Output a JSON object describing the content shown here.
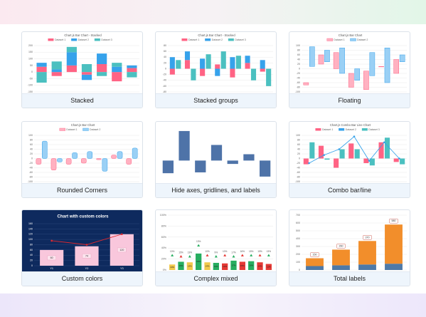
{
  "cards": [
    {
      "label": "Stacked",
      "chart": {
        "type": "bar",
        "title": "Chart.js Bar Chart - Stacked",
        "stacked": true,
        "ylim": [
          -150,
          200
        ],
        "yticks": [
          200,
          150,
          100,
          50,
          0,
          -50,
          -100,
          -150
        ],
        "series": [
          {
            "name": "Dataset 1",
            "color": "#ff6384",
            "values": [
              40,
              -30,
              50,
              -20,
              60,
              -70,
              30
            ]
          },
          {
            "name": "Dataset 2",
            "color": "#36a2eb",
            "values": [
              30,
              20,
              100,
              -40,
              80,
              40,
              20
            ]
          },
          {
            "name": "Dataset 3",
            "color": "#4bc0c0",
            "values": [
              -80,
              60,
              40,
              60,
              -30,
              30,
              -40
            ]
          }
        ]
      }
    },
    {
      "label": "Stacked groups",
      "chart": {
        "type": "bar",
        "title": "Chart.js Bar Chart - Stacked",
        "stacked": true,
        "ylim": [
          -80,
          80
        ],
        "yticks": [
          80,
          60,
          40,
          20,
          0,
          -20,
          -40,
          -60,
          -80
        ],
        "series": [
          {
            "name": "Dataset 1",
            "color": "#ff6384",
            "stack": "Stack 0",
            "values": [
              -20,
              30,
              -25,
              15,
              -30,
              20,
              -10
            ]
          },
          {
            "name": "Dataset 2",
            "color": "#36a2eb",
            "stack": "Stack 0",
            "values": [
              40,
              30,
              35,
              -25,
              40,
              25,
              30
            ]
          },
          {
            "name": "Dataset 3",
            "color": "#4bc0c0",
            "stack": "Stack 1",
            "values": [
              30,
              -40,
              50,
              60,
              45,
              -40,
              -60
            ]
          }
        ]
      }
    },
    {
      "label": "Floating",
      "chart": {
        "type": "bar",
        "title": "Chart.js Bar Chart",
        "floating": true,
        "ylim": [
          -100,
          100
        ],
        "yticks": [
          100,
          80,
          60,
          40,
          20,
          0,
          -20,
          -40,
          -60,
          -80,
          -100
        ],
        "series": [
          {
            "name": "Dataset 1",
            "color": "#ffb1c1",
            "border": "#ff6384",
            "values": [
              [
                -60,
                -70
              ],
              [
                20,
                60
              ],
              [
                0,
                70
              ],
              [
                -20,
                -80
              ],
              [
                -10,
                -90
              ],
              [
                10,
                8
              ],
              [
                40,
                -20
              ]
            ]
          },
          {
            "name": "Dataset 2",
            "color": "#9ad0f5",
            "border": "#36a2eb",
            "values": [
              [
                95,
                10
              ],
              [
                80,
                30
              ],
              [
                90,
                -20
              ],
              [
                0,
                -50
              ],
              [
                70,
                -30
              ],
              [
                90,
                -60
              ],
              [
                30,
                60
              ]
            ]
          }
        ]
      }
    },
    {
      "label": "Rounded Corners",
      "chart": {
        "type": "bar",
        "title": "Chart.js Bar Chart",
        "rounded": true,
        "ylim": [
          -100,
          100
        ],
        "yticks": [
          100,
          80,
          60,
          40,
          20,
          0,
          -20,
          -40,
          -60,
          -80,
          -100
        ],
        "series": [
          {
            "name": "Dataset 1",
            "color": "#ffb1c1",
            "border": "#ff6384",
            "values": [
              -25,
              -50,
              -25,
              -20,
              -5,
              15,
              -25
            ]
          },
          {
            "name": "Dataset 2",
            "color": "#9ad0f5",
            "border": "#36a2eb",
            "values": [
              75,
              -15,
              25,
              30,
              -55,
              30,
              45
            ]
          }
        ]
      }
    },
    {
      "label": "Hide axes, gridlines, and labels",
      "chart": {
        "type": "bar",
        "ylim": [
          -50,
          80
        ],
        "series": [
          {
            "color": "#4e73a8",
            "values": [
              -30,
              70,
              -28,
              37,
              -8,
              15,
              -38
            ]
          }
        ]
      }
    },
    {
      "label": "Combo bar/line",
      "chart": {
        "type": "bar",
        "title": "Chart.js Combo Bar Line Chart",
        "ylim": [
          -100,
          100
        ],
        "yticks": [
          100,
          80,
          60,
          40,
          20,
          0,
          -20,
          -40,
          -60,
          -80,
          -100
        ],
        "series": [
          {
            "name": "Dataset 1",
            "color": "#ff6384",
            "values": [
              -25,
              55,
              -40,
              65,
              -20,
              70,
              -15
            ]
          },
          {
            "name": "Dataset 2",
            "color": "#36a2eb",
            "type": "line",
            "values": [
              -20,
              15,
              40,
              95,
              -10,
              70,
              0
            ]
          },
          {
            "name": "Dataset 3",
            "color": "#4bc0c0",
            "values": [
              70,
              -5,
              40,
              40,
              -30,
              90,
              -25
            ]
          }
        ]
      }
    },
    {
      "label": "Custom colors",
      "chart": {
        "type": "bar",
        "title": "Chart with custom colors",
        "background": "#0e2a5e",
        "text_color": "#ffffff",
        "grid_color": "#2a467a",
        "categories": [
          "Y1",
          "Y2",
          "Y3"
        ],
        "ylim": [
          0,
          160
        ],
        "yticks": [
          160,
          140,
          120,
          100,
          80,
          60,
          40,
          20,
          0
        ],
        "show_values": true,
        "series": [
          {
            "color": "#f9c7dc",
            "values": [
              60,
              74,
              120
            ]
          },
          {
            "color": "#e0282e",
            "type": "line",
            "values": [
              95,
              80,
              120
            ]
          }
        ]
      }
    },
    {
      "label": "Complex mixed",
      "chart": {
        "type": "bar",
        "ylim": [
          0,
          100
        ],
        "yticks": [
          {
            "value": 100,
            "label": "100%"
          },
          {
            "value": 80,
            "label": "80%"
          },
          {
            "value": 60,
            "label": "60%"
          },
          {
            "value": 40,
            "label": "40%"
          },
          {
            "value": 20,
            "label": "20%"
          },
          {
            "value": 0,
            "label": "0%"
          }
        ],
        "annotations": [
          "10%",
          "15%",
          "13%",
          "13%",
          "10%",
          "9%",
          "10%",
          "17%",
          "16%",
          "15%",
          "15%",
          "13%"
        ],
        "series": [
          {
            "color": "#27ae60",
            "values": [
              10,
              15,
              14,
              30,
              14,
              13,
              12,
              17,
              15,
              16,
              14,
              11
            ],
            "value_labels": [
              "10%",
              "15%",
              "14%",
              "30%",
              "14%",
              "13%",
              "12%",
              "17%",
              "15%",
              "16%",
              "14%",
              "11%"
            ],
            "colors": [
              "#f2c94c",
              "#27ae60",
              "#f2c94c",
              "#27ae60",
              "#f2c94c",
              "#27ae60",
              "#e53935",
              "#27ae60",
              "#e53935",
              "#27ae60",
              "#e53935",
              "#e53935"
            ]
          },
          {
            "color": "#27ae60",
            "type": "marker",
            "values": [
              27,
              25,
              25,
              45,
              27,
              25,
              27,
              25,
              27,
              27,
              27,
              27
            ],
            "colors": [
              "#27ae60",
              "#e53935",
              "#27ae60",
              "#27ae60",
              "#e53935",
              "#27ae60",
              "#e53935",
              "#27ae60",
              "#e53935",
              "#27ae60",
              "#e53935",
              "#27ae60"
            ]
          }
        ]
      }
    },
    {
      "label": "Total labels",
      "chart": {
        "type": "bar",
        "stacked": true,
        "ylim": [
          0,
          700
        ],
        "yticks": [
          700,
          600,
          500,
          400,
          300,
          200,
          100,
          0
        ],
        "total_labels": [
          "150",
          "260",
          "370",
          "580"
        ],
        "series": [
          {
            "color": "#4e79a7",
            "values": [
              50,
              60,
              70,
              80
            ]
          },
          {
            "color": "#f28e2b",
            "values": [
              100,
              200,
              300,
              500
            ]
          }
        ]
      }
    }
  ]
}
